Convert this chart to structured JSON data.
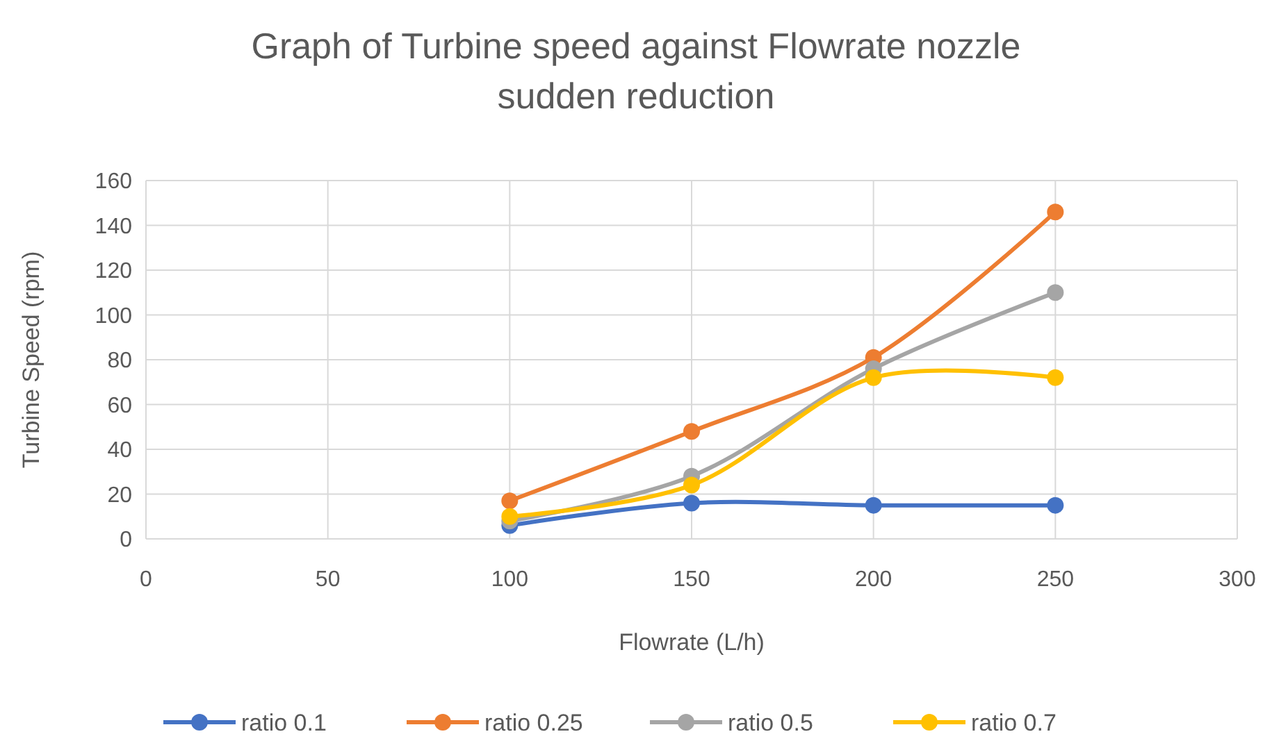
{
  "chart_data": {
    "type": "line",
    "title": "Graph of Turbine speed against Flowrate nozzle sudden reduction",
    "xlabel": "Flowrate (L/h)",
    "ylabel": "Turbine Speed (rpm)",
    "x": [
      100,
      150,
      200,
      250
    ],
    "series": [
      {
        "name": "ratio 0.1",
        "color": "#4472c4",
        "values": [
          6,
          16,
          15,
          15
        ]
      },
      {
        "name": "ratio 0.25",
        "color": "#ed7d31",
        "values": [
          17,
          48,
          81,
          146
        ]
      },
      {
        "name": "ratio 0.5",
        "color": "#a5a5a5",
        "values": [
          8,
          28,
          76,
          110
        ]
      },
      {
        "name": "ratio 0.7",
        "color": "#ffc000",
        "values": [
          10,
          24,
          72,
          72
        ]
      }
    ],
    "xlim": [
      0,
      300
    ],
    "xticks": [
      0,
      50,
      100,
      150,
      200,
      250,
      300
    ],
    "ylim": [
      0,
      160
    ],
    "yticks": [
      0,
      20,
      40,
      60,
      80,
      100,
      120,
      140,
      160
    ],
    "grid": true,
    "legend": "bottom",
    "marker": "circle",
    "line_style": "solid"
  }
}
